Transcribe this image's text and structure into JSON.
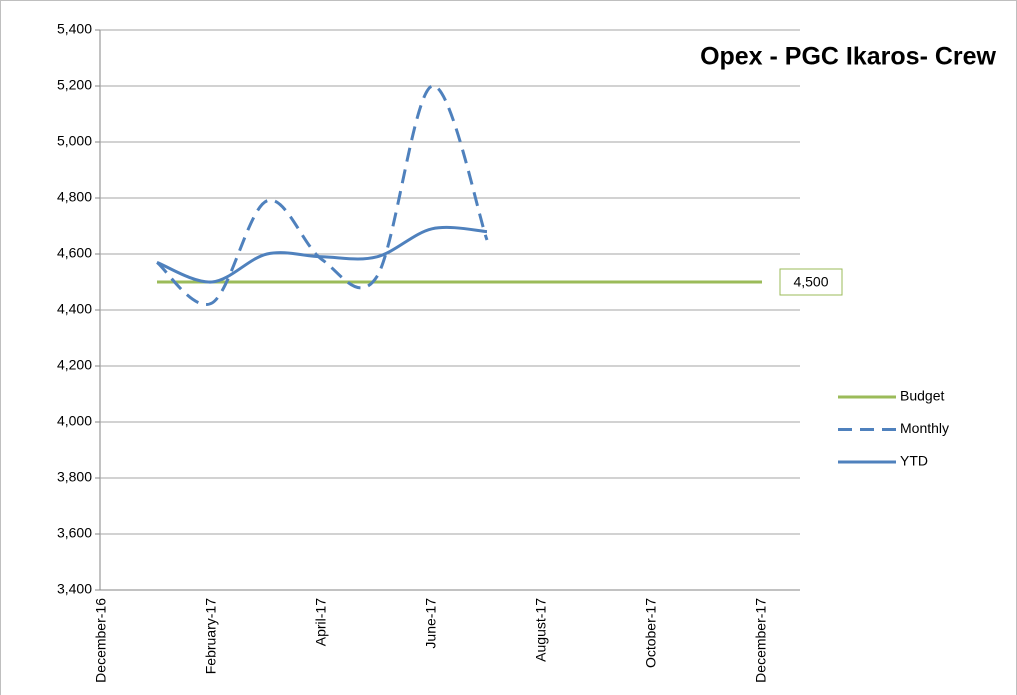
{
  "chart_data": {
    "type": "line",
    "title": "Opex - PGC Ikaros- Crew",
    "categories": [
      "December-16",
      null,
      "February-17",
      null,
      "April-17",
      null,
      "June-17",
      null,
      "August-17",
      null,
      "October-17",
      null,
      "December-17"
    ],
    "series": [
      {
        "name": "Budget",
        "color": "#9bbb59",
        "dash": false,
        "values": [
          null,
          4500,
          4500,
          4500,
          4500,
          4500,
          4500,
          4500,
          4500,
          4500,
          4500,
          4500,
          4500
        ],
        "value_labels": [
          null,
          null,
          null,
          null,
          null,
          null,
          null,
          null,
          null,
          null,
          null,
          null,
          "4,500"
        ]
      },
      {
        "name": "Monthly",
        "color": "#4f81bd",
        "dash": true,
        "values": [
          null,
          4570,
          4425,
          4790,
          4580,
          4520,
          5200,
          4650,
          null,
          null,
          null,
          null,
          null
        ]
      },
      {
        "name": "YTD",
        "color": "#4f81bd",
        "dash": false,
        "values": [
          null,
          4570,
          4500,
          4600,
          4590,
          4590,
          4690,
          4680,
          null,
          null,
          null,
          null,
          null
        ]
      }
    ],
    "ylim": [
      3400,
      5400
    ],
    "yticks": [
      {
        "value": 3400,
        "label": "3,400"
      },
      {
        "value": 3600,
        "label": "3,600"
      },
      {
        "value": 3800,
        "label": "3,800"
      },
      {
        "value": 4000,
        "label": "4,000"
      },
      {
        "value": 4200,
        "label": "4,200"
      },
      {
        "value": 4400,
        "label": "4,400"
      },
      {
        "value": 4600,
        "label": "4,600"
      },
      {
        "value": 4800,
        "label": "4,800"
      },
      {
        "value": 5000,
        "label": "5,000"
      },
      {
        "value": 5200,
        "label": "5,200"
      },
      {
        "value": 5400,
        "label": "5,400"
      }
    ],
    "grid": true,
    "legend": "right"
  }
}
